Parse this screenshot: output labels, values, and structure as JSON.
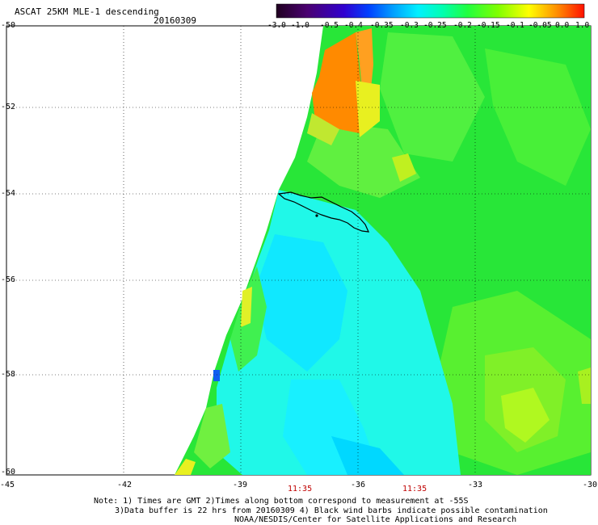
{
  "header": {
    "title": "ASCAT 25KM MLE-1 descending",
    "date": "20160309"
  },
  "colorbar": {
    "ticks": [
      "-3.0",
      "-1.0",
      "-0.5",
      "-0.4",
      "-0.35",
      "-0.3",
      "-0.25",
      "-0.2",
      "-0.15",
      "-0.1",
      "-0.05",
      "0.0",
      "1.0"
    ],
    "colors": [
      "#2a0030",
      "#6a00a0",
      "#2a00d0",
      "#0050ff",
      "#00a0ff",
      "#00e8ff",
      "#00ffd0",
      "#30ff60",
      "#70ff00",
      "#c0ff00",
      "#ffff00",
      "#ff9000",
      "#ff2000"
    ]
  },
  "map": {
    "lat_labels": [
      "-50",
      "-52",
      "-54",
      "-56",
      "-58",
      "-60"
    ],
    "lon_labels": [
      "-45",
      "-42",
      "-39",
      "-36",
      "-33",
      "-30"
    ],
    "time_labels": [
      "11:35",
      "11:35"
    ],
    "colors": {
      "orange": "#ff8c00",
      "orange_light": "#ffa020",
      "yellow": "#e8ff20",
      "lime": "#40f030",
      "green": "#20e040",
      "cyan": "#20ffe0",
      "cyan_blue": "#00e0ff",
      "blue": "#1080ff"
    }
  },
  "notes": {
    "line1": "Note: 1) Times are GMT 2)Times along bottom correspond to measurement at -55S",
    "line2": "3)Data buffer is 22 hrs from 20160309 4) Black wind barbs indicate possible contamination",
    "line3": "NOAA/NESDIS/Center for Satellite Applications and Research"
  }
}
